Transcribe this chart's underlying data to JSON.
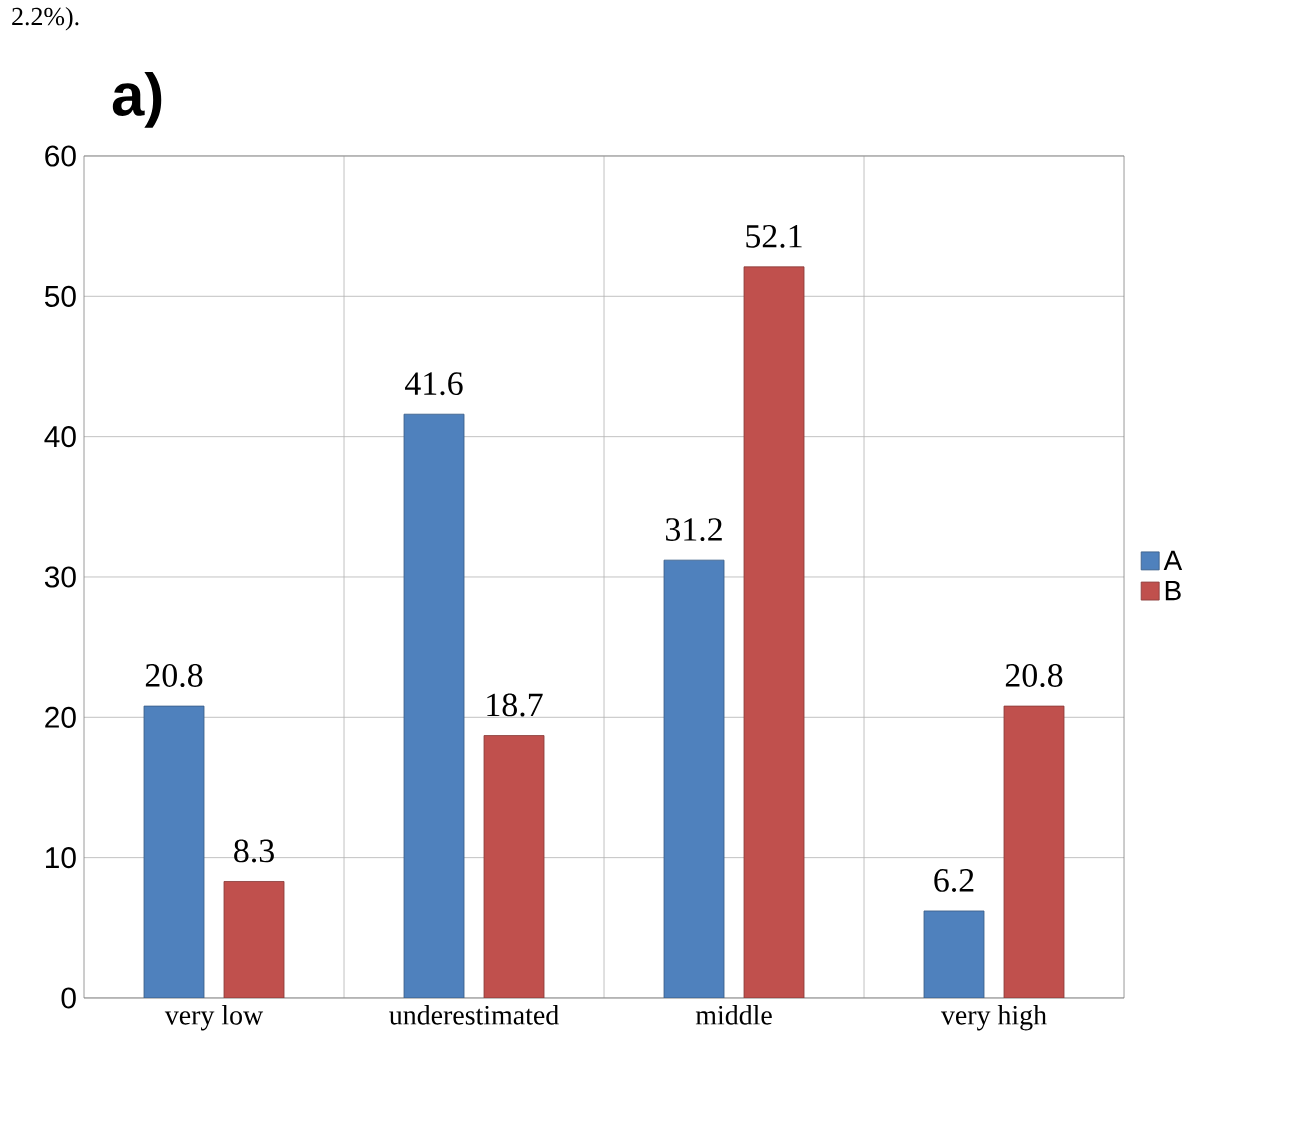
{
  "chart_data": {
    "type": "bar",
    "title": "a)",
    "annotations": [
      "2.2%)."
    ],
    "categories": [
      "very low",
      "underestimated",
      "middle",
      "very high"
    ],
    "series": [
      {
        "name": "A",
        "color": "#4f81bd",
        "values": [
          20.8,
          41.6,
          31.2,
          6.2
        ]
      },
      {
        "name": "B",
        "color": "#c0504d",
        "values": [
          8.3,
          18.7,
          52.1,
          20.8
        ]
      }
    ],
    "ylim": [
      0,
      60
    ],
    "yticks": [
      0,
      10,
      20,
      30,
      40,
      50,
      60
    ],
    "grid": true,
    "legend": "right",
    "data_labels": true
  }
}
